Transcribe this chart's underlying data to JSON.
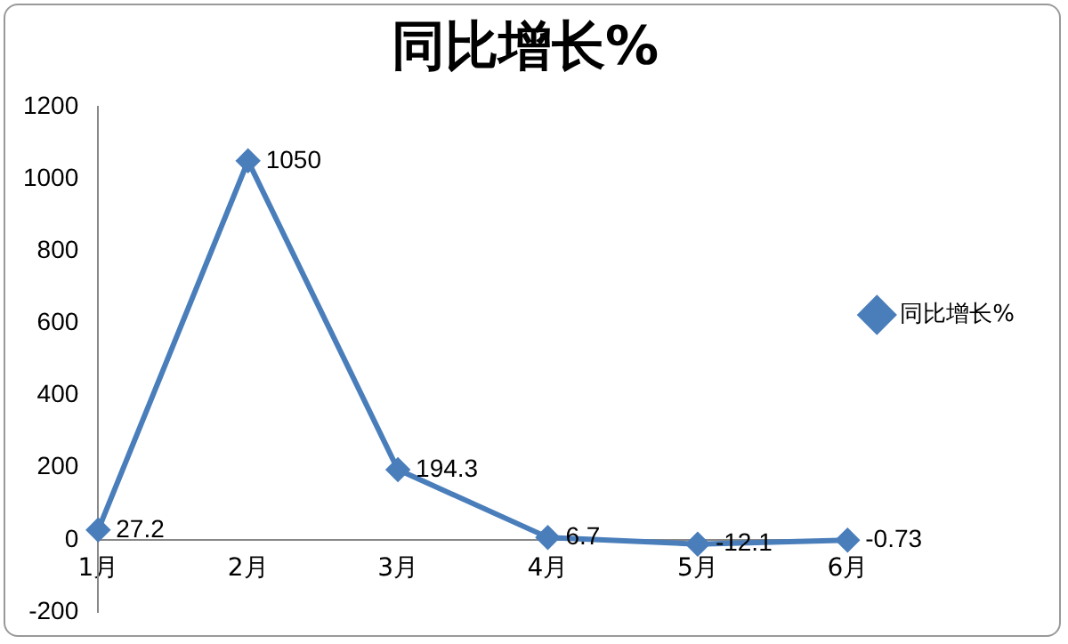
{
  "chart_data": {
    "type": "line",
    "title": "同比增长%",
    "categories": [
      "1月",
      "2月",
      "3月",
      "4月",
      "5月",
      "6月"
    ],
    "series": [
      {
        "name": "同比增长%",
        "color": "#4a7ebb",
        "values": [
          27.2,
          1050,
          194.3,
          6.7,
          -12.1,
          -0.73
        ]
      }
    ],
    "ylim": [
      -200,
      1200
    ],
    "yticks": [
      -200,
      0,
      200,
      400,
      600,
      800,
      1000,
      1200
    ],
    "grid": false,
    "legend": "right",
    "marker": "diamond",
    "line_style": "solid",
    "data_labels": true
  }
}
